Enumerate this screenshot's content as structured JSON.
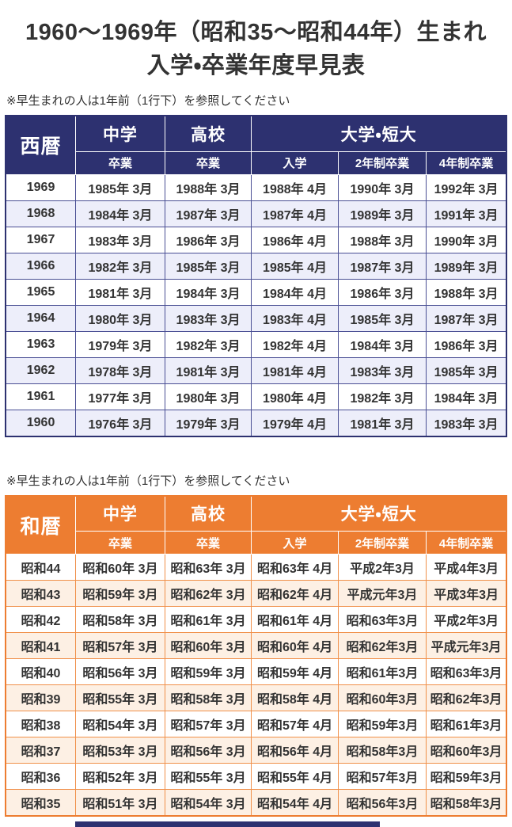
{
  "page": {
    "title_line1": "1960〜1969年（昭和35〜昭和44年）生まれ",
    "title_line2": "入学・卒業年度早見表",
    "note": "※早生まれの人は1年前（1行下）を参照してください"
  },
  "colors": {
    "navy_header": "#2d3170",
    "navy_border": "#4a4f94",
    "navy_row_alt": "#edeefa",
    "orange_header": "#ed7d31",
    "orange_border": "#f0904a",
    "orange_row_alt": "#fdf0e4",
    "text": "#333333"
  },
  "tables": [
    {
      "corner_label": "西暦",
      "group_headers": [
        "中学",
        "高校",
        "大学・短大"
      ],
      "sub_headers": [
        "卒業",
        "卒業",
        "入学",
        "2年制卒業",
        "4年制卒業"
      ],
      "rows": [
        {
          "label": "1969",
          "cells": [
            "1985年 3月",
            "1988年 3月",
            "1988年 4月",
            "1990年 3月",
            "1992年 3月"
          ]
        },
        {
          "label": "1968",
          "cells": [
            "1984年 3月",
            "1987年 3月",
            "1987年 4月",
            "1989年 3月",
            "1991年 3月"
          ]
        },
        {
          "label": "1967",
          "cells": [
            "1983年 3月",
            "1986年 3月",
            "1986年 4月",
            "1988年 3月",
            "1990年 3月"
          ]
        },
        {
          "label": "1966",
          "cells": [
            "1982年 3月",
            "1985年 3月",
            "1985年 4月",
            "1987年 3月",
            "1989年 3月"
          ]
        },
        {
          "label": "1965",
          "cells": [
            "1981年 3月",
            "1984年 3月",
            "1984年 4月",
            "1986年 3月",
            "1988年 3月"
          ]
        },
        {
          "label": "1964",
          "cells": [
            "1980年 3月",
            "1983年 3月",
            "1983年 4月",
            "1985年 3月",
            "1987年 3月"
          ]
        },
        {
          "label": "1963",
          "cells": [
            "1979年 3月",
            "1982年 3月",
            "1982年 4月",
            "1984年 3月",
            "1986年 3月"
          ]
        },
        {
          "label": "1962",
          "cells": [
            "1978年 3月",
            "1981年 3月",
            "1981年 4月",
            "1983年 3月",
            "1985年 3月"
          ]
        },
        {
          "label": "1961",
          "cells": [
            "1977年 3月",
            "1980年 3月",
            "1980年 4月",
            "1982年 3月",
            "1984年 3月"
          ]
        },
        {
          "label": "1960",
          "cells": [
            "1976年 3月",
            "1979年 3月",
            "1979年 4月",
            "1981年 3月",
            "1983年 3月"
          ]
        }
      ]
    },
    {
      "corner_label": "和暦",
      "group_headers": [
        "中学",
        "高校",
        "大学・短大"
      ],
      "sub_headers": [
        "卒業",
        "卒業",
        "入学",
        "2年制卒業",
        "4年制卒業"
      ],
      "rows": [
        {
          "label": "昭和44",
          "cells": [
            "昭和60年 3月",
            "昭和63年 3月",
            "昭和63年 4月",
            "平成2年3月",
            "平成4年3月"
          ]
        },
        {
          "label": "昭和43",
          "cells": [
            "昭和59年 3月",
            "昭和62年 3月",
            "昭和62年 4月",
            "平成元年3月",
            "平成3年3月"
          ]
        },
        {
          "label": "昭和42",
          "cells": [
            "昭和58年 3月",
            "昭和61年 3月",
            "昭和61年 4月",
            "昭和63年3月",
            "平成2年3月"
          ]
        },
        {
          "label": "昭和41",
          "cells": [
            "昭和57年 3月",
            "昭和60年 3月",
            "昭和60年 4月",
            "昭和62年3月",
            "平成元年3月"
          ]
        },
        {
          "label": "昭和40",
          "cells": [
            "昭和56年 3月",
            "昭和59年 3月",
            "昭和59年 4月",
            "昭和61年3月",
            "昭和63年3月"
          ]
        },
        {
          "label": "昭和39",
          "cells": [
            "昭和55年 3月",
            "昭和58年 3月",
            "昭和58年 4月",
            "昭和60年3月",
            "昭和62年3月"
          ]
        },
        {
          "label": "昭和38",
          "cells": [
            "昭和54年 3月",
            "昭和57年 3月",
            "昭和57年 4月",
            "昭和59年3月",
            "昭和61年3月"
          ]
        },
        {
          "label": "昭和37",
          "cells": [
            "昭和53年 3月",
            "昭和56年 3月",
            "昭和56年 4月",
            "昭和58年3月",
            "昭和60年3月"
          ]
        },
        {
          "label": "昭和36",
          "cells": [
            "昭和52年 3月",
            "昭和55年 3月",
            "昭和55年 4月",
            "昭和57年3月",
            "昭和59年3月"
          ]
        },
        {
          "label": "昭和35",
          "cells": [
            "昭和51年 3月",
            "昭和54年 3月",
            "昭和54年 4月",
            "昭和56年3月",
            "昭和58年3月"
          ]
        }
      ]
    }
  ]
}
